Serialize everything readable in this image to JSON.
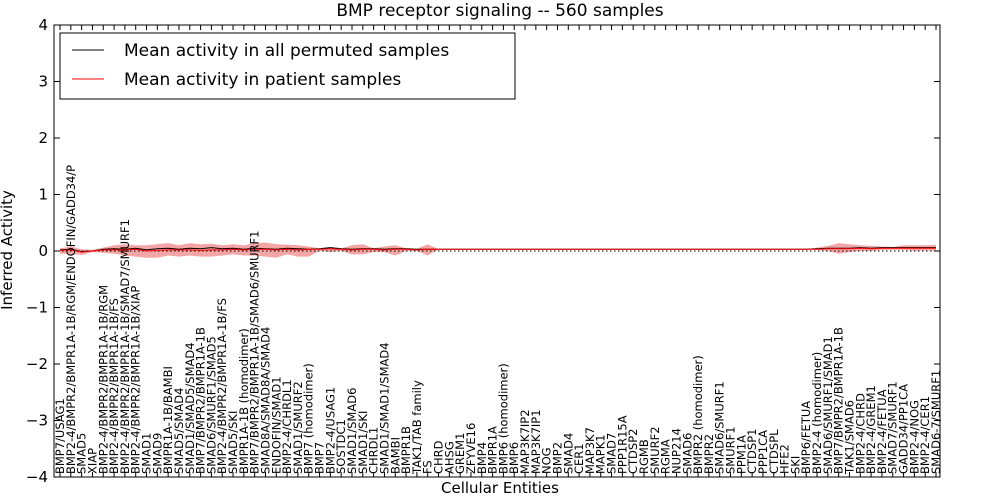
{
  "chart_data": {
    "type": "line",
    "title": "BMP receptor signaling -- 560 samples",
    "xlabel": "Cellular Entities",
    "ylabel": "Inferred Activity",
    "ylim": [
      -4,
      4
    ],
    "yticks": [
      "−4",
      "−3",
      "−2",
      "−1",
      "0",
      "1",
      "2",
      "3",
      "4"
    ],
    "grid": false,
    "legend_position": "top-left",
    "categories": [
      "BMP7/USAG1",
      "BMP2-4/BMPR2/BMPR1A-1B/RGM/ENDOFIN/GADD34/P",
      "SMAD5",
      "XIAP",
      "BMP2-4/BMPR2/BMPR1A-1B/RGM",
      "BMP2-4/BMPR2/BMPR1A-1B/FS",
      "BMP2-4/BMPR2/BMPR1A-1B/SMAD7/SMURF1",
      "BMP2-4/BMPR2/BMPR1A-1B/XIAP",
      "SMAD1",
      "SMAD9",
      "BMPR1A-1B/BAMBI",
      "SMAD5/SMAD4",
      "SMAD1/SMAD5/SMAD4",
      "BMP7/BMPR2/BMPR1A-1B",
      "SMAD6/SMURF1/SMAD5",
      "BMP2-4/BMPR2/BMPR1A-1B/FS",
      "SMAD5/SKI",
      "BMPR1A-1B (homodimer)",
      "BMP7/BMPR2/BMPR1A-1B/SMAD6/SMURF1",
      "SMAD8A/SMAD8A/SMAD4",
      "ENDOFIN/SMAD1",
      "BMP2-4/CHRDL1",
      "SMAD1/SMURF2",
      "BMP7 (homodimer)",
      "BMP7",
      "BMP2-4/USAG1",
      "SOSTDC1",
      "SMAD1/SMAD6",
      "SMAD1/SKI",
      "CHRDL1",
      "SMAD1/SMAD1/SMAD4",
      "BAMBI",
      "BMPR1B",
      "TAK1/TAB family",
      "FS",
      "CHRD",
      "AHSG",
      "GREM1",
      "ZFYVE16",
      "BMP4",
      "BMPR1A",
      "BMP6 (homodimer)",
      "BMP6",
      "MAP3K7IP2",
      "MAP3K7IP1",
      "NOG",
      "BMP2",
      "SMAD4",
      "CER1",
      "MAP3K7",
      "MAPK1",
      "SMAD7",
      "PPP1R15A",
      "CTDSP2",
      "RGMB",
      "SMURF2",
      "RGMA",
      "NUP214",
      "SMAD6",
      "BMPR2 (homodimer)",
      "BMPR2",
      "SMAD6/SMURF1",
      "SMURF1",
      "PPM1A",
      "CTDSP1",
      "PPP1CA",
      "CTDSPL",
      "HFE2",
      "SKI",
      "BMP6/FETUA",
      "BMP2-4 (homodimer)",
      "SMAD6/SMURF1/SMAD1",
      "BMP7/BMPR2/BMPR1A-1B",
      "TAK1/SMAD6",
      "BMP2-4/CHRD",
      "BMP2-4/GREM1",
      "BMP2-4/FETUA",
      "SMAD7/SMURF1",
      "GADD34/PP1CA",
      "BMP2-4/NOG",
      "BMP2-4/CER1",
      "SMAD6-7/SMURF1"
    ],
    "series": [
      {
        "name": "Mean activity in all permuted samples",
        "color": "#000000",
        "values": [
          0.02,
          0.03,
          -0.01,
          0.0,
          0.03,
          0.04,
          0.03,
          0.05,
          0.02,
          0.04,
          0.05,
          0.03,
          0.05,
          0.04,
          0.06,
          0.04,
          0.05,
          0.03,
          0.05,
          0.04,
          0.03,
          0.05,
          0.04,
          0.03,
          0.04,
          0.06,
          0.04,
          0.03,
          0.04,
          0.04,
          0.03,
          0.04,
          0.04,
          0.03,
          0.03,
          0.03,
          0.03,
          0.03,
          0.03,
          0.03,
          0.03,
          0.03,
          0.03,
          0.03,
          0.03,
          0.03,
          0.03,
          0.03,
          0.03,
          0.03,
          0.03,
          0.03,
          0.03,
          0.03,
          0.03,
          0.03,
          0.03,
          0.03,
          0.03,
          0.03,
          0.03,
          0.03,
          0.03,
          0.03,
          0.03,
          0.03,
          0.03,
          0.03,
          0.03,
          0.03,
          0.04,
          0.05,
          0.05,
          0.05,
          0.06,
          0.05,
          0.06,
          0.06,
          0.06,
          0.06,
          0.06,
          0.06
        ]
      },
      {
        "name": "Mean activity in patient samples",
        "color": "#ff0000",
        "values": [
          0.01,
          0.02,
          -0.02,
          0.0,
          0.02,
          0.02,
          0.02,
          0.03,
          0.0,
          0.01,
          0.02,
          0.02,
          0.02,
          0.01,
          0.02,
          0.02,
          0.03,
          0.02,
          0.03,
          0.03,
          0.02,
          0.03,
          0.02,
          0.03,
          0.03,
          0.04,
          0.03,
          0.02,
          0.03,
          0.03,
          0.02,
          0.03,
          0.03,
          0.02,
          0.03,
          0.03,
          0.03,
          0.03,
          0.03,
          0.03,
          0.03,
          0.03,
          0.03,
          0.03,
          0.03,
          0.03,
          0.03,
          0.03,
          0.03,
          0.03,
          0.03,
          0.03,
          0.03,
          0.03,
          0.03,
          0.03,
          0.03,
          0.03,
          0.03,
          0.03,
          0.03,
          0.03,
          0.03,
          0.03,
          0.03,
          0.03,
          0.03,
          0.03,
          0.03,
          0.03,
          0.03,
          0.04,
          0.04,
          0.04,
          0.05,
          0.04,
          0.05,
          0.05,
          0.05,
          0.05,
          0.05,
          0.05
        ],
        "band_upper": [
          0.05,
          0.08,
          0.03,
          0.02,
          0.06,
          0.1,
          0.12,
          0.1,
          0.1,
          0.12,
          0.14,
          0.1,
          0.14,
          0.12,
          0.13,
          0.1,
          0.12,
          0.1,
          0.14,
          0.15,
          0.12,
          0.11,
          0.1,
          0.08,
          0.05,
          0.07,
          0.05,
          0.1,
          0.12,
          0.05,
          0.08,
          0.1,
          0.05,
          0.04,
          0.12,
          0.03,
          0.03,
          0.03,
          0.03,
          0.03,
          0.03,
          0.03,
          0.03,
          0.03,
          0.03,
          0.03,
          0.03,
          0.03,
          0.03,
          0.03,
          0.03,
          0.03,
          0.03,
          0.03,
          0.03,
          0.03,
          0.03,
          0.03,
          0.03,
          0.03,
          0.03,
          0.03,
          0.03,
          0.03,
          0.03,
          0.03,
          0.03,
          0.03,
          0.03,
          0.03,
          0.06,
          0.09,
          0.14,
          0.12,
          0.1,
          0.09,
          0.08,
          0.07,
          0.1,
          0.1,
          0.1,
          0.11
        ],
        "band_lower": [
          -0.05,
          -0.05,
          -0.07,
          -0.02,
          -0.03,
          -0.05,
          -0.08,
          -0.1,
          -0.12,
          -0.12,
          -0.08,
          -0.1,
          -0.08,
          -0.1,
          -0.1,
          -0.08,
          -0.06,
          -0.08,
          -0.08,
          -0.1,
          -0.12,
          -0.06,
          -0.1,
          -0.1,
          0.0,
          -0.02,
          0.0,
          -0.06,
          -0.06,
          -0.02,
          -0.02,
          -0.08,
          0.0,
          0.0,
          -0.08,
          0.03,
          0.03,
          0.03,
          0.03,
          0.03,
          0.03,
          0.03,
          0.03,
          0.03,
          0.03,
          0.03,
          0.03,
          0.03,
          0.03,
          0.03,
          0.03,
          0.03,
          0.03,
          0.03,
          0.03,
          0.03,
          0.03,
          0.03,
          0.03,
          0.03,
          0.03,
          0.03,
          0.03,
          0.03,
          0.03,
          0.03,
          0.03,
          0.03,
          0.03,
          0.03,
          0.02,
          0.0,
          -0.05,
          -0.02,
          0.0,
          0.0,
          0.02,
          0.02,
          0.02,
          0.0,
          0.01,
          0.0
        ]
      }
    ],
    "reference_line": 0
  }
}
